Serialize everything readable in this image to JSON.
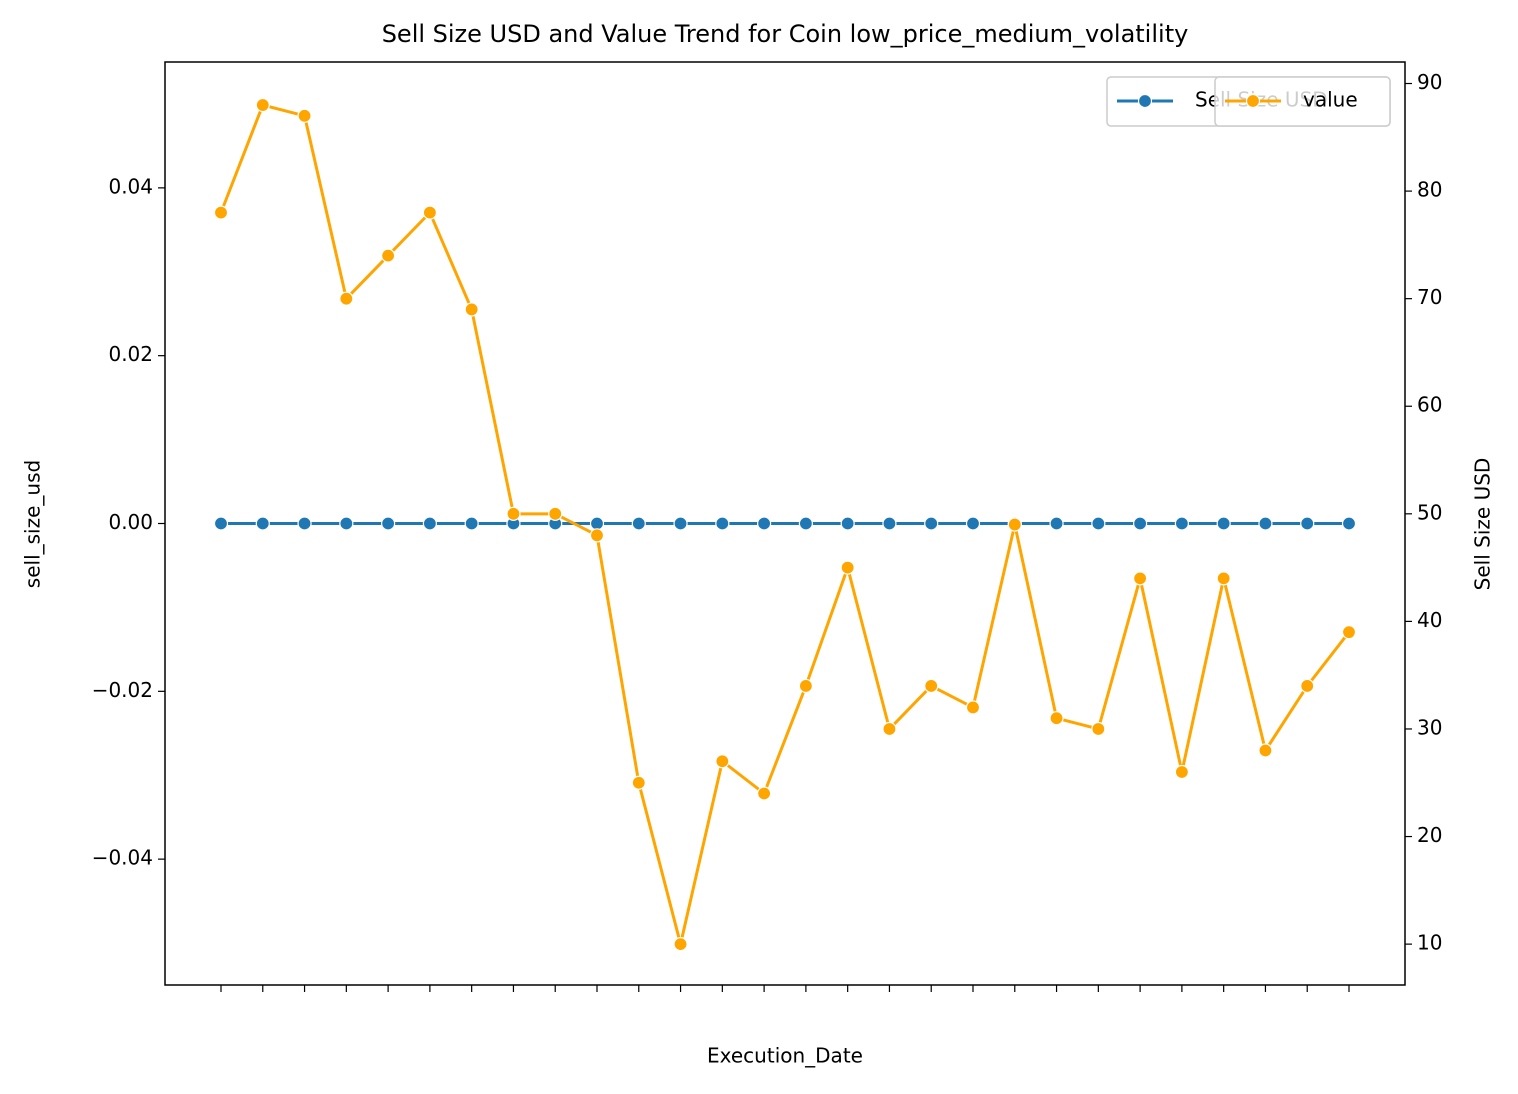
{
  "chart_data": {
    "type": "line",
    "title": "Sell Size USD and Value Trend for Coin low_price_medium_volatility",
    "xlabel": "Execution_Date",
    "ylabel": "sell_size_usd",
    "y2label": "Sell Size USD",
    "categories": [
      null,
      null,
      null,
      null,
      null,
      null,
      null,
      null,
      null,
      null,
      null,
      null,
      null,
      null,
      null,
      null,
      null,
      null,
      null,
      null,
      null,
      null,
      null,
      null,
      null,
      null,
      null,
      null
    ],
    "ylim": [
      -0.055,
      0.055
    ],
    "yticks": [
      {
        "value": -0.04,
        "label": "−0.04"
      },
      {
        "value": -0.02,
        "label": "−0.02"
      },
      {
        "value": 0,
        "label": "0.00"
      },
      0.02,
      0.04
    ],
    "y2lim": [
      6.2,
      92
    ],
    "y2ticks": [
      10,
      20,
      30,
      40,
      50,
      60,
      70,
      80,
      90
    ],
    "legend": "upper right",
    "series": [
      {
        "name": "Sell Size USD",
        "color": "#1f77b4",
        "values": [
          0,
          0,
          0,
          0,
          0,
          0,
          0,
          0,
          0,
          0,
          0,
          0,
          0,
          0,
          0,
          0,
          0,
          0,
          0,
          0,
          0,
          0,
          0,
          0,
          0,
          0,
          0,
          0
        ]
      },
      {
        "name": "value",
        "color": "#ffa500",
        "axis": "y2",
        "values": [
          78,
          88,
          87,
          70,
          74,
          78,
          69,
          50,
          50,
          48,
          25,
          10,
          27,
          24,
          34,
          45,
          30,
          34,
          32,
          49,
          31,
          30,
          44,
          26,
          44,
          28,
          34,
          39
        ]
      }
    ]
  }
}
